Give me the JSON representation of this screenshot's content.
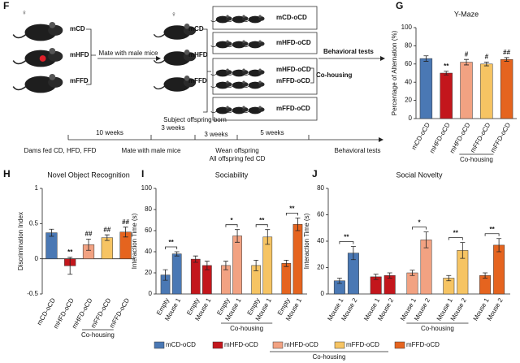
{
  "diagram": {
    "panel": "F",
    "symbol": "♀",
    "dams": [
      "mCD",
      "mHFD",
      "mFFD"
    ],
    "mate": "Mate with male mice",
    "offspring": [
      "mCD",
      "mHFD",
      "mFFD"
    ],
    "groups": [
      "mCD-oCD",
      "mHFD-oCD",
      "mHFD-oCD",
      "mFFD-oCD",
      "mFFD-oCD"
    ],
    "cohousing": "Co-housing",
    "tests": "Behavioral tests",
    "timeline": {
      "durations": [
        "10 weeks",
        "3 weeks",
        "3 weeks",
        "5 weeks"
      ],
      "born": "Subject offspring born",
      "events": [
        "Dams fed CD, HFD, FFD",
        "Mate with male mice",
        "Wean offspring",
        "All offspring fed CD",
        "Behavioral tests"
      ]
    }
  },
  "chart_data": [
    {
      "type": "bar",
      "panel": "G",
      "title": "Y-Maze",
      "y_label": "Percentage of Alternation (%)",
      "categories": [
        "mCD-oCD",
        "mHFD-oCD",
        "mHFD-oCD",
        "mFFD-oCD",
        "mFFD-oCD"
      ],
      "values": [
        66,
        50,
        62,
        60,
        65
      ],
      "errors": [
        3,
        2,
        3,
        2,
        2
      ],
      "annotations": [
        null,
        "**",
        "#",
        "#",
        "##"
      ],
      "colors": [
        "#4a78b4",
        "#c3161c",
        "#f2a282",
        "#f6c463",
        "#e5641f"
      ],
      "group_label": "Co-housing",
      "group_span": [
        2,
        3
      ],
      "ylim": [
        0,
        100
      ],
      "yticks": [
        0,
        20,
        40,
        60,
        80,
        100
      ]
    },
    {
      "type": "bar",
      "panel": "H",
      "title": "Novel Object Recognition",
      "y_label": "Discrimination Index",
      "categories": [
        "mCD-oCD",
        "mHFD-oCD",
        "mHFD-oCD",
        "mFFD-oCD",
        "mFFD-oCD"
      ],
      "values": [
        0.37,
        -0.1,
        0.2,
        0.3,
        0.38
      ],
      "errors": [
        0.05,
        0.12,
        0.08,
        0.04,
        0.07
      ],
      "annotations": [
        null,
        "**",
        "##",
        "##",
        "##"
      ],
      "colors": [
        "#4a78b4",
        "#c3161c",
        "#f2a282",
        "#f6c463",
        "#e5641f"
      ],
      "group_label": "Co-housing",
      "group_span": [
        2,
        3
      ],
      "ylim": [
        -0.5,
        1
      ],
      "yticks": [
        -0.5,
        0,
        0.5,
        1
      ]
    },
    {
      "type": "grouped_bar",
      "panel": "I",
      "title": "Sociability",
      "y_label": "Interaction Time (s)",
      "categories": [
        "Empty",
        "Mouse 1"
      ],
      "series": [
        {
          "name": "mCD-oCD",
          "color": "#4a78b4",
          "values": [
            18,
            38
          ],
          "errors": [
            5,
            2
          ]
        },
        {
          "name": "mHFD-oCD",
          "color": "#c3161c",
          "values": [
            33,
            27
          ],
          "errors": [
            3,
            4
          ]
        },
        {
          "name": "mHFD-oCD",
          "color": "#f2a282",
          "values": [
            27,
            55
          ],
          "errors": [
            4,
            6
          ]
        },
        {
          "name": "mFFD-oCD",
          "color": "#f6c463",
          "values": [
            27,
            54
          ],
          "errors": [
            5,
            7
          ]
        },
        {
          "name": "mFFD-oCD",
          "color": "#e5641f",
          "values": [
            29,
            66
          ],
          "errors": [
            3,
            6
          ]
        }
      ],
      "annotations": [
        "**",
        null,
        "*",
        "**",
        "**"
      ],
      "group_label": "Co-housing",
      "group_span": [
        2,
        3
      ],
      "ylim": [
        0,
        100
      ],
      "yticks": [
        0,
        20,
        40,
        60,
        80,
        100
      ]
    },
    {
      "type": "grouped_bar",
      "panel": "J",
      "title": "Social Novelty",
      "y_label": "Interaction Time (s)",
      "categories": [
        "Mouse 1",
        "Mouse 2"
      ],
      "series": [
        {
          "color": "#4a78b4",
          "values": [
            10,
            31
          ],
          "errors": [
            2,
            5
          ]
        },
        {
          "color": "#c3161c",
          "values": [
            13,
            14
          ],
          "errors": [
            2,
            2
          ]
        },
        {
          "color": "#f2a282",
          "values": [
            16,
            41
          ],
          "errors": [
            2,
            6
          ]
        },
        {
          "color": "#f6c463",
          "values": [
            12,
            33
          ],
          "errors": [
            2,
            6
          ]
        },
        {
          "color": "#e5641f",
          "values": [
            14,
            37
          ],
          "errors": [
            2,
            5
          ]
        }
      ],
      "annotations": [
        "**",
        null,
        "*",
        "**",
        "**"
      ],
      "group_label": "Co-housing",
      "group_span": [
        2,
        3
      ],
      "ylim": [
        0,
        80
      ],
      "yticks": [
        0,
        20,
        40,
        60,
        80
      ]
    }
  ]
}
